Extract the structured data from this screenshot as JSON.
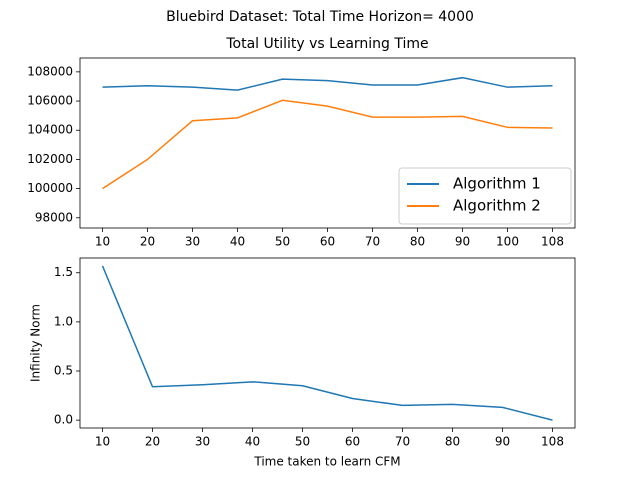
{
  "title": "Bluebird Dataset: Total Time Horizon= 4000",
  "chart_data": [
    {
      "type": "line",
      "title": "Total Utility vs Learning Time",
      "categories": [
        10,
        20,
        30,
        40,
        50,
        60,
        70,
        80,
        90,
        100,
        108
      ],
      "series": [
        {
          "name": "Algorithm 1",
          "color": "#1f77b4",
          "values": [
            106950,
            107050,
            106950,
            106750,
            107500,
            107400,
            107100,
            107100,
            107600,
            106950,
            107050
          ]
        },
        {
          "name": "Algorithm 2",
          "color": "#ff7f0e",
          "values": [
            100000,
            102000,
            104650,
            104850,
            106050,
            105650,
            104900,
            104900,
            104950,
            104200,
            104150
          ]
        }
      ],
      "ylim": [
        97300,
        108950
      ],
      "yticks": [
        98000,
        100000,
        102000,
        104000,
        106000,
        108000
      ],
      "legend": "lower right"
    },
    {
      "type": "line",
      "ylabel": "Infinity Norm",
      "xlabel": "Time taken to learn CFM",
      "categories": [
        10,
        20,
        30,
        40,
        50,
        60,
        70,
        80,
        90,
        108
      ],
      "series": [
        {
          "color": "#1f77b4",
          "values": [
            1.57,
            0.34,
            0.36,
            0.39,
            0.35,
            0.22,
            0.15,
            0.16,
            0.13,
            0.0
          ]
        }
      ],
      "ylim": [
        -0.08,
        1.65
      ],
      "yticks": [
        {
          "value": 0,
          "label": "0.0"
        },
        0.5,
        {
          "value": 1,
          "label": "1.0"
        },
        1.5
      ]
    }
  ]
}
